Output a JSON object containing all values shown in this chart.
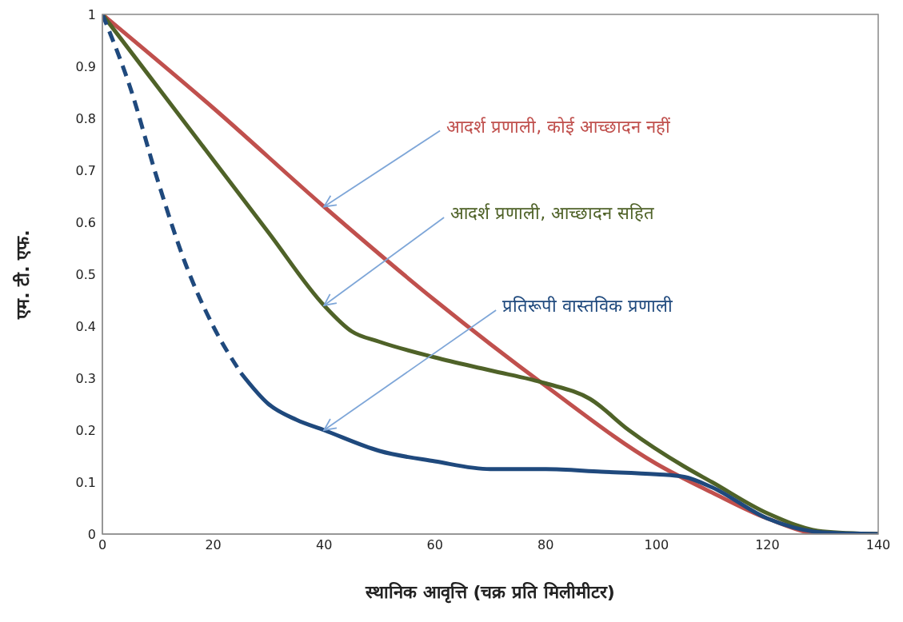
{
  "chart_data": {
    "type": "line",
    "xlabel": "स्थानिक आवृत्ति (चक्र प्रति मिलीमीटर)",
    "ylabel": "एम. टी. एफ.",
    "xlim": [
      0,
      140
    ],
    "xticks": [
      0,
      20,
      40,
      60,
      80,
      100,
      120,
      140
    ],
    "ylim": [
      0,
      1
    ],
    "yticks": [
      0,
      0.1,
      0.2,
      0.3,
      0.4,
      0.5,
      0.6,
      0.7,
      0.8,
      0.9,
      1
    ],
    "marker": "none",
    "series": [
      {
        "name": "आदर्श प्रणाली, कोई आच्छादन नहीं",
        "color": "#c0504d",
        "line_style": "solid",
        "x": [
          0,
          20,
          40,
          60,
          80,
          100,
          110,
          120,
          130,
          140
        ],
        "values": [
          1,
          0.82,
          0.63,
          0.45,
          0.285,
          0.135,
          0.08,
          0.03,
          0,
          0
        ]
      },
      {
        "name": "आदर्श प्रणाली, आच्छादन सहित",
        "color": "#4f6228",
        "line_style": "solid",
        "x": [
          0,
          10,
          20,
          30,
          40,
          45,
          50,
          60,
          70,
          80,
          88,
          95,
          105,
          110,
          120,
          130,
          140
        ],
        "values": [
          1,
          0.86,
          0.72,
          0.58,
          0.44,
          0.39,
          0.37,
          0.34,
          0.315,
          0.29,
          0.26,
          0.2,
          0.13,
          0.1,
          0.04,
          0.005,
          0
        ]
      },
      {
        "color": "#1f497d",
        "line_style": "dashed",
        "x": [
          0,
          5,
          10,
          15,
          20,
          25
        ],
        "values": [
          1,
          0.86,
          0.68,
          0.52,
          0.4,
          0.31
        ]
      },
      {
        "name": "प्रतिरूपी वास्तविक प्रणाली",
        "color": "#1f497d",
        "line_style": "solid",
        "x": [
          25,
          30,
          35,
          40,
          50,
          60,
          70,
          80,
          90,
          100,
          105,
          110,
          120,
          130,
          140
        ],
        "values": [
          0.31,
          0.25,
          0.22,
          0.2,
          0.16,
          0.14,
          0.125,
          0.125,
          0.12,
          0.115,
          0.11,
          0.09,
          0.03,
          0.003,
          0
        ]
      }
    ]
  }
}
